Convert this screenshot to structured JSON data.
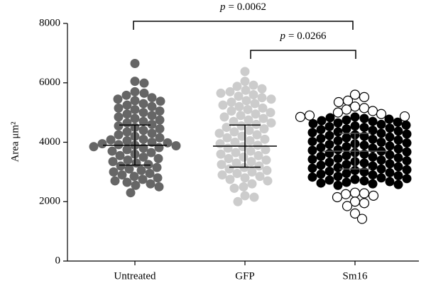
{
  "chart_data": {
    "type": "dotplot",
    "y_label": "Area μm²",
    "categories": [
      "Untreated",
      "GFP",
      "Sm16"
    ],
    "ylim": [
      0,
      8000
    ],
    "yticks": [
      0,
      2000,
      4000,
      6000,
      8000
    ],
    "groups": [
      {
        "color": "#666666",
        "bar_color": "#000000",
        "mean": 3900,
        "sd_upper": 4580,
        "sd_lower": 3230,
        "points": [
          6650,
          6050,
          5990,
          5700,
          5650,
          5580,
          5500,
          5450,
          5400,
          5380,
          5300,
          5250,
          5200,
          5150,
          5100,
          5050,
          5000,
          4950,
          4900,
          4850,
          4800,
          4750,
          4700,
          4650,
          4600,
          4550,
          4500,
          4450,
          4400,
          4350,
          4300,
          4250,
          4200,
          4150,
          4100,
          4080,
          4050,
          4000,
          3980,
          3950,
          3920,
          3900,
          3880,
          3850,
          3820,
          3800,
          3750,
          3700,
          3650,
          3600,
          3550,
          3500,
          3450,
          3400,
          3350,
          3300,
          3250,
          3200,
          3150,
          3100,
          3050,
          3000,
          2950,
          2900,
          2850,
          2800,
          2750,
          2700,
          2650,
          2600,
          2550,
          2500,
          2300
        ],
        "open_points": []
      },
      {
        "color": "#cccccc",
        "bar_color": "#000000",
        "mean": 3870,
        "sd_upper": 4580,
        "sd_lower": 3160,
        "points": [
          6380,
          6050,
          5920,
          5880,
          5800,
          5750,
          5700,
          5650,
          5600,
          5550,
          5500,
          5450,
          5400,
          5350,
          5300,
          5250,
          5200,
          5150,
          5100,
          5050,
          5000,
          4950,
          4900,
          4850,
          4800,
          4750,
          4700,
          4650,
          4600,
          4550,
          4500,
          4450,
          4400,
          4350,
          4300,
          4250,
          4200,
          4150,
          4100,
          4050,
          4000,
          3950,
          3900,
          3850,
          3800,
          3750,
          3700,
          3650,
          3600,
          3550,
          3500,
          3450,
          3400,
          3350,
          3300,
          3250,
          3200,
          3150,
          3100,
          3050,
          3000,
          2950,
          2900,
          2850,
          2800,
          2750,
          2700,
          2600,
          2500,
          2450,
          2200,
          2150,
          2000
        ],
        "open_points": []
      },
      {
        "color": "#000000",
        "bar_color": "#555555",
        "mean": 3700,
        "sd_upper": 4300,
        "sd_lower": 3100,
        "points": [
          4850,
          4800,
          4750,
          4700,
          4650,
          4600,
          4550,
          4500,
          4450,
          4400,
          4350,
          4300,
          4250,
          4200,
          4150,
          4100,
          4050,
          4000,
          3950,
          3900,
          3850,
          3800,
          3750,
          3700,
          3650,
          3600,
          3550,
          3500,
          3450,
          3400,
          3350,
          3300,
          3250,
          3200,
          3150,
          3100,
          3050,
          3000,
          2950,
          2900,
          2850,
          2800,
          2750,
          2700,
          2650,
          2600,
          2550,
          4825,
          4775,
          4725,
          4675,
          4625,
          4575,
          4525,
          4475,
          4425,
          4375,
          4325,
          4275,
          4225,
          4175,
          4125,
          4075,
          4025,
          3975,
          3925,
          3875,
          3825,
          3775,
          3725,
          3675,
          3625,
          3575,
          3525,
          3475,
          3425,
          3375,
          3325,
          3275,
          3225,
          3175,
          3125,
          3075,
          3025,
          2975,
          2925,
          2875,
          2825,
          2775,
          2725,
          2675,
          2625,
          2575
        ],
        "open_points": [
          5600,
          5520,
          5400,
          5350,
          5200,
          5150,
          5100,
          5050,
          5000,
          4950,
          4900,
          4870,
          4850,
          2300,
          2280,
          2250,
          2200,
          2150,
          2000,
          1950,
          1850,
          1600,
          1420
        ]
      }
    ],
    "annotations": [
      {
        "symbol": "p",
        "text": "= 0.0062"
      },
      {
        "symbol": "p",
        "text": "= 0.0266"
      }
    ]
  }
}
